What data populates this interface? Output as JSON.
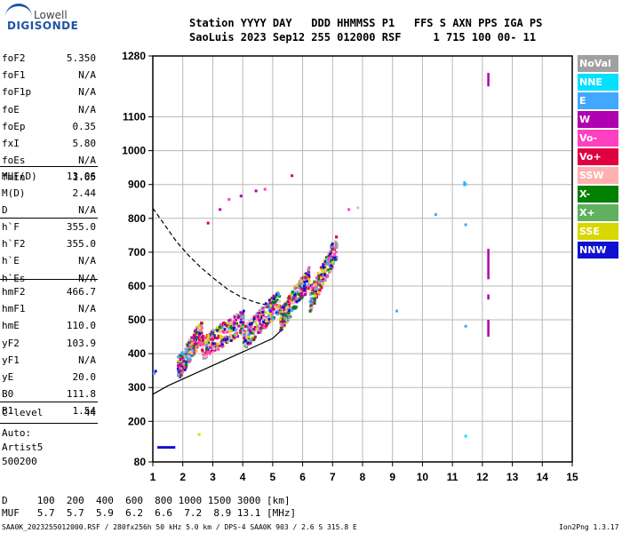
{
  "logo": {
    "top": "Lowell",
    "main": "DIGISONDE"
  },
  "header": {
    "line1": "Station YYYY DAY   DDD HHMMSS P1   FFS S AXN PPS IGA PS",
    "line2": "SaoLuis 2023 Sep12 255 012000 RSF     1 715 100 00- 11"
  },
  "params_group1": [
    {
      "k": "foF2",
      "v": "5.350"
    },
    {
      "k": "foF1",
      "v": "N/A"
    },
    {
      "k": "foF1p",
      "v": "N/A"
    },
    {
      "k": "foE",
      "v": "N/A"
    },
    {
      "k": "foEp",
      "v": "0.35"
    },
    {
      "k": "fxI",
      "v": "5.80"
    },
    {
      "k": "foEs",
      "v": "N/A"
    },
    {
      "k": "fmin",
      "v": "1.65"
    }
  ],
  "params_group2": [
    {
      "k": "MUF(D)",
      "v": "13.06"
    },
    {
      "k": "M(D)",
      "v": "2.44"
    },
    {
      "k": "D",
      "v": "N/A"
    }
  ],
  "params_group3": [
    {
      "k": "h`F",
      "v": "355.0"
    },
    {
      "k": "h`F2",
      "v": "355.0"
    },
    {
      "k": "h`E",
      "v": "N/A"
    },
    {
      "k": "h`Es",
      "v": "N/A"
    }
  ],
  "params_group4": [
    {
      "k": "hmF2",
      "v": "466.7"
    },
    {
      "k": "hmF1",
      "v": "N/A"
    },
    {
      "k": "hmE",
      "v": "110.0"
    },
    {
      "k": "yF2",
      "v": "103.9"
    },
    {
      "k": "yF1",
      "v": "N/A"
    },
    {
      "k": "yE",
      "v": "20.0"
    },
    {
      "k": "B0",
      "v": "111.8"
    },
    {
      "k": "B1",
      "v": "1.54"
    }
  ],
  "clevel": {
    "k": "C-level",
    "v": "44"
  },
  "auto": {
    "line1": "Auto:",
    "line2": "Artist5",
    "line3": "500200"
  },
  "legend": [
    {
      "label": "NoVal",
      "color": "#a0a0a0"
    },
    {
      "label": "NNE",
      "color": "#00e0ff"
    },
    {
      "label": "E",
      "color": "#40a8ff"
    },
    {
      "label": "W",
      "color": "#b000b0"
    },
    {
      "label": "Vo-",
      "color": "#ff40c0"
    },
    {
      "label": "Vo+",
      "color": "#e00040"
    },
    {
      "label": "SSW",
      "color": "#ffb0b0"
    },
    {
      "label": "X-",
      "color": "#008000"
    },
    {
      "label": "X+",
      "color": "#60b060"
    },
    {
      "label": "SSE",
      "color": "#d8d800"
    },
    {
      "label": "NNW",
      "color": "#1010d0"
    }
  ],
  "footer": {
    "d_line": "D     100  200  400  600  800 1000 1500 3000 [km]",
    "muf_line": "MUF   5.7  5.7  5.9  6.2  6.6  7.2  8.9 13.1 [MHz]",
    "file_line": "SAA0K_2023255012000.RSF / 280fx256h 50 kHz 5.0 km / DPS-4 SAA0K 903 / 2.6 S 315.8 E",
    "version": "Ion2Png 1.3.17"
  },
  "chart_data": {
    "type": "scatter",
    "xlim": [
      1,
      15
    ],
    "ylim": [
      80,
      1280
    ],
    "xticks": [
      "1",
      "2",
      "3",
      "4",
      "5",
      "6",
      "7",
      "8",
      "9",
      "10",
      "11",
      "12",
      "13",
      "14",
      "15"
    ],
    "yticks": [
      {
        "v": 80,
        "label": "80"
      },
      {
        "v": 200,
        "label": "200"
      },
      {
        "v": 300,
        "label": "300"
      },
      {
        "v": 400,
        "label": "400"
      },
      {
        "v": 500,
        "label": "500"
      },
      {
        "v": 600,
        "label": "600"
      },
      {
        "v": 700,
        "label": "700"
      },
      {
        "v": 800,
        "label": "800"
      },
      {
        "v": 900,
        "label": "900"
      },
      {
        "v": 1000,
        "label": "1000"
      },
      {
        "v": 1100,
        "label": "1100"
      },
      {
        "v": 1280,
        "label": "1280"
      }
    ],
    "grid": true,
    "profile_curve": [
      [
        1,
        280
      ],
      [
        1.5,
        305
      ],
      [
        2,
        325
      ],
      [
        2.5,
        345
      ],
      [
        3,
        365
      ],
      [
        3.5,
        385
      ],
      [
        4,
        405
      ],
      [
        4.5,
        425
      ],
      [
        5,
        445
      ],
      [
        5.3,
        470
      ]
    ],
    "dashed_curve": [
      [
        1,
        830
      ],
      [
        1.4,
        780
      ],
      [
        1.8,
        730
      ],
      [
        2.2,
        690
      ],
      [
        2.6,
        655
      ],
      [
        3,
        625
      ],
      [
        3.5,
        590
      ],
      [
        4,
        565
      ],
      [
        4.5,
        550
      ],
      [
        5,
        540
      ],
      [
        5.3,
        535
      ]
    ],
    "trace_bands": [
      {
        "x0": 1.8,
        "x1": 2.6,
        "y0": 360,
        "y1": 470
      },
      {
        "x0": 2.6,
        "x1": 4.0,
        "y0": 420,
        "y1": 500
      },
      {
        "x0": 4.0,
        "x1": 5.2,
        "y0": 450,
        "y1": 560
      },
      {
        "x0": 5.2,
        "x1": 6.2,
        "y0": 500,
        "y1": 630
      },
      {
        "x0": 6.2,
        "x1": 7.1,
        "y0": 560,
        "y1": 720
      }
    ],
    "scattered_points": [
      {
        "x": 2.8,
        "y": 790,
        "c": "#e00040"
      },
      {
        "x": 3.2,
        "y": 830,
        "c": "#b000b0"
      },
      {
        "x": 3.5,
        "y": 860,
        "c": "#ff40c0"
      },
      {
        "x": 3.9,
        "y": 870,
        "c": "#b000b0"
      },
      {
        "x": 4.4,
        "y": 885,
        "c": "#b000b0"
      },
      {
        "x": 4.7,
        "y": 890,
        "c": "#ff40c0"
      },
      {
        "x": 5.6,
        "y": 930,
        "c": "#e00040"
      },
      {
        "x": 1.0,
        "y": 345,
        "c": "#40a8ff"
      },
      {
        "x": 1.05,
        "y": 352,
        "c": "#1010d0"
      },
      {
        "x": 9.1,
        "y": 530,
        "c": "#40a8ff"
      },
      {
        "x": 10.4,
        "y": 815,
        "c": "#40a8ff"
      },
      {
        "x": 11.4,
        "y": 905,
        "c": "#00e0ff"
      },
      {
        "x": 11.4,
        "y": 785,
        "c": "#40a8ff"
      },
      {
        "x": 11.4,
        "y": 485,
        "c": "#40a8ff"
      },
      {
        "x": 11.4,
        "y": 160,
        "c": "#00e0ff"
      },
      {
        "x": 2.5,
        "y": 165,
        "c": "#d8d800"
      },
      {
        "x": 7.8,
        "y": 835,
        "c": "#ffb0b0"
      },
      {
        "x": 7.5,
        "y": 830,
        "c": "#ff40c0"
      }
    ],
    "vertical_marks": [
      {
        "x": 12.2,
        "y0": 1190,
        "y1": 1230,
        "c": "#b000b0"
      },
      {
        "x": 12.2,
        "y0": 620,
        "y1": 710,
        "c": "#b000b0"
      },
      {
        "x": 12.2,
        "y0": 560,
        "y1": 575,
        "c": "#b000b0"
      },
      {
        "x": 12.2,
        "y0": 450,
        "y1": 500,
        "c": "#b000b0"
      },
      {
        "x": 11.4,
        "y0": 895,
        "y1": 910,
        "c": "#40a8ff"
      }
    ],
    "bottom_segment": {
      "x0": 1.15,
      "x1": 1.75,
      "y": 123,
      "c": "#1010d0"
    }
  }
}
